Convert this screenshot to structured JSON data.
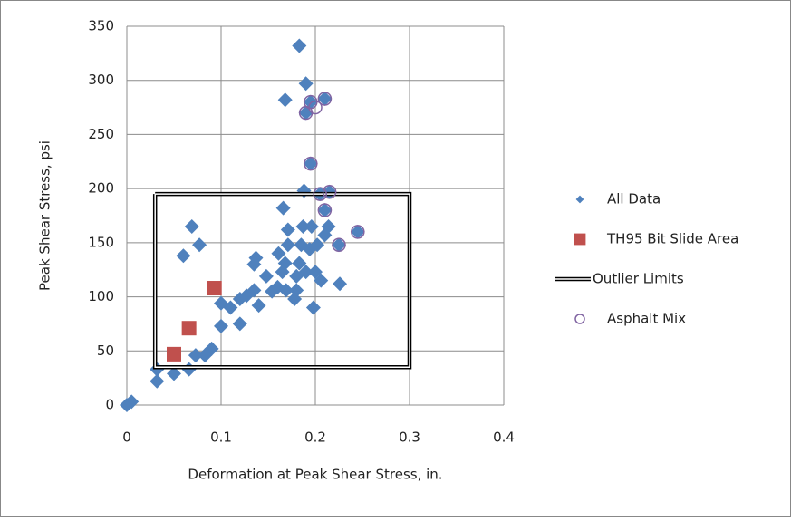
{
  "chart_data": {
    "type": "scatter",
    "x_label": "Deformation at Peak Shear Stress, in.",
    "y_label": "Peak Shear Stress, psi",
    "xlim": [
      0,
      0.4
    ],
    "xticks": [
      0,
      0.1,
      0.2,
      0.3,
      0.4
    ],
    "ylim": [
      0,
      350
    ],
    "yticks": [
      0,
      50,
      100,
      150,
      200,
      250,
      300,
      350
    ],
    "grid": true,
    "legend": "right",
    "series": [
      {
        "name": "All Data",
        "color": "#4f81bd",
        "marker": "diamond",
        "x": [
          0,
          0.005,
          0.032,
          0.032,
          0.05,
          0.066,
          0.073,
          0.083,
          0.09,
          0.06,
          0.069,
          0.077,
          0.1,
          0.1,
          0.11,
          0.12,
          0.12,
          0.127,
          0.135,
          0.135,
          0.137,
          0.14,
          0.148,
          0.154,
          0.16,
          0.165,
          0.168,
          0.171,
          0.171,
          0.166,
          0.178,
          0.18,
          0.183,
          0.185,
          0.187,
          0.188,
          0.19,
          0.194,
          0.196,
          0.198,
          0.2,
          0.202,
          0.206,
          0.21,
          0.214,
          0.226,
          0.168,
          0.183,
          0.19,
          0.18,
          0.161,
          0.169,
          0.19,
          0.195,
          0.21,
          0.195,
          0.205,
          0.215,
          0.21,
          0.225,
          0.245
        ],
        "y": [
          0,
          3,
          33,
          22,
          29,
          33,
          46,
          46,
          52,
          138,
          165,
          148,
          73,
          94,
          90,
          98,
          75,
          101,
          106,
          130,
          136,
          92,
          119,
          105,
          109,
          123,
          131,
          148,
          162,
          182,
          98,
          119,
          131,
          148,
          165,
          198,
          123,
          144,
          165,
          90,
          123,
          148,
          115,
          157,
          165,
          112,
          282,
          332,
          297,
          106,
          140,
          106,
          270,
          280,
          283,
          223,
          195,
          197,
          180,
          148,
          160
        ]
      },
      {
        "name": "TH95 Bit Slide Area",
        "color": "#c0504d",
        "marker": "square",
        "x": [
          0.05,
          0.066,
          0.093
        ],
        "y": [
          47,
          71,
          108
        ]
      },
      {
        "name": "Outlier Limits",
        "color": "#000000",
        "marker": "double-line",
        "x": [
          0.03,
          0.3,
          0.3,
          0.03,
          0.03
        ],
        "y": [
          195,
          195,
          35,
          35,
          195
        ]
      },
      {
        "name": "Asphalt Mix",
        "color": "#8064a2",
        "marker": "circle",
        "x": [
          0.19,
          0.195,
          0.2,
          0.21,
          0.195,
          0.205,
          0.215,
          0.21,
          0.225,
          0.245
        ],
        "y": [
          270,
          280,
          275,
          283,
          223,
          195,
          197,
          180,
          148,
          160
        ]
      }
    ]
  }
}
